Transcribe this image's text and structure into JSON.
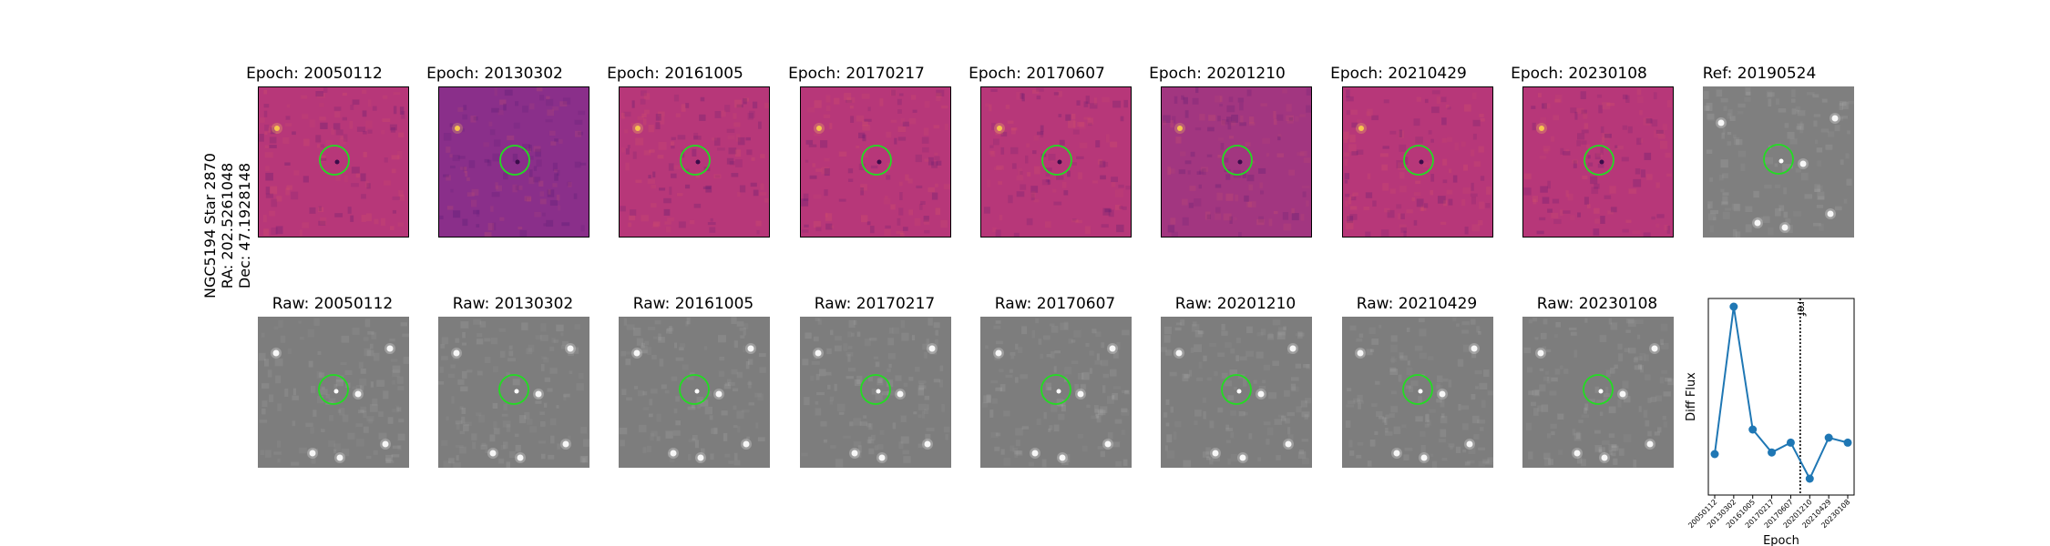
{
  "side_label": [
    "NGC5194 Star 2870",
    "RA: 202.5261048",
    "Dec: 47.1928148"
  ],
  "colors": {
    "diff": "#b73779",
    "raw": "#7d7d7d",
    "marker": "#22dd22",
    "line": "#1f77b4"
  },
  "diff_panels": [
    {
      "title": "Epoch: 20050112"
    },
    {
      "title": "Epoch: 20130302"
    },
    {
      "title": "Epoch: 20161005"
    },
    {
      "title": "Epoch: 20170217"
    },
    {
      "title": "Epoch: 20170607"
    },
    {
      "title": "Epoch: 20201210"
    },
    {
      "title": "Epoch: 20210429"
    },
    {
      "title": "Epoch: 20230108"
    }
  ],
  "ref_panel": {
    "title": "Ref: 20190524"
  },
  "raw_panels": [
    {
      "title": "Raw: 20050112"
    },
    {
      "title": "Raw: 20130302"
    },
    {
      "title": "Raw: 20161005"
    },
    {
      "title": "Raw: 20170217"
    },
    {
      "title": "Raw: 20170607"
    },
    {
      "title": "Raw: 20201210"
    },
    {
      "title": "Raw: 20210429"
    },
    {
      "title": "Raw: 20230108"
    }
  ],
  "chart_data": {
    "type": "line",
    "xlabel": "Epoch",
    "ylabel": "Diff Flux",
    "categories": [
      "20050112",
      "20130302",
      "20161005",
      "20170217",
      "20170607",
      "20201210",
      "20210429",
      "20230108"
    ],
    "values": [
      0.05,
      0.95,
      0.2,
      0.06,
      0.12,
      -0.1,
      0.15,
      0.12
    ],
    "ref_marker": {
      "label": "ref",
      "position_between": [
        "20170607",
        "20201210"
      ]
    },
    "ylim": [
      -0.2,
      1.0
    ],
    "grid": false,
    "marker": "circle"
  }
}
